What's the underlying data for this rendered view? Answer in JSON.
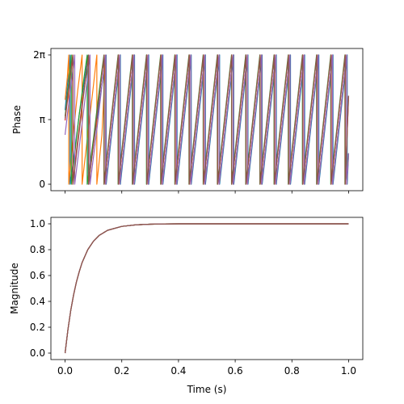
{
  "chart_data": [
    {
      "type": "line",
      "panel": "top",
      "title": "",
      "xlabel": "",
      "ylabel": "Phase",
      "xlim": [
        -0.05,
        1.05
      ],
      "ylim": [
        -0.314,
        6.597
      ],
      "x_tick_values": [
        0.0,
        0.2,
        0.4,
        0.6,
        0.8,
        1.0
      ],
      "x_tick_labels_shown": false,
      "y_ticks": [
        {
          "value": 0,
          "label": "0"
        },
        {
          "value": 3.14159,
          "label": "π"
        },
        {
          "value": 6.28319,
          "label": "2π"
        }
      ],
      "grid": false,
      "legend": "none",
      "wrap_period": 6.28319,
      "description_of_signal": "phase wrapped to [0, 2π) of a 20 Hz oscillation with transient start",
      "series": [
        {
          "color": "#1f77b4",
          "points": [
            [
              0.0,
              3.6
            ],
            [
              0.008,
              4.8
            ],
            [
              0.016,
              5.9
            ],
            [
              0.0175,
              6.28
            ],
            [
              0.0175,
              0.0
            ],
            [
              0.03,
              1.2
            ],
            [
              0.04,
              2.3
            ],
            [
              0.05,
              3.4
            ],
            [
              0.07,
              5.2
            ],
            [
              0.082,
              6.28
            ],
            [
              0.082,
              0.0
            ],
            [
              0.1,
              1.9
            ],
            [
              0.13,
              4.8
            ],
            [
              0.145,
              6.28
            ],
            [
              0.145,
              0.0
            ]
          ],
          "steady": {
            "start": 0.145,
            "end_phase": 1.5,
            "frequency": 20
          }
        },
        {
          "color": "#ff7f0e",
          "points": [
            [
              0.0,
              4.1
            ],
            [
              0.008,
              5.2
            ],
            [
              0.013,
              6.28
            ],
            [
              0.013,
              0.0
            ],
            [
              0.02,
              1.1
            ],
            [
              0.03,
              2.6
            ],
            [
              0.045,
              4.6
            ],
            [
              0.06,
              6.28
            ],
            [
              0.06,
              0.0
            ],
            [
              0.08,
              2.4
            ],
            [
              0.1,
              4.8
            ],
            [
              0.112,
              6.28
            ],
            [
              0.112,
              0.0
            ],
            [
              0.13,
              2.4
            ],
            [
              0.143,
              6.28
            ],
            [
              0.143,
              0.0
            ]
          ],
          "steady": {
            "start": 0.143,
            "end_phase": 1.5,
            "frequency": 20
          }
        },
        {
          "color": "#2ca02c",
          "points": [
            [
              0.0,
              3.3
            ],
            [
              0.01,
              4.6
            ],
            [
              0.02,
              5.9
            ],
            [
              0.022,
              6.28
            ],
            [
              0.022,
              0.0
            ],
            [
              0.035,
              1.6
            ],
            [
              0.05,
              3.4
            ],
            [
              0.065,
              5.0
            ],
            [
              0.078,
              6.28
            ],
            [
              0.078,
              0.0
            ],
            [
              0.1,
              2.2
            ],
            [
              0.12,
              4.5
            ],
            [
              0.137,
              6.28
            ],
            [
              0.137,
              0.0
            ]
          ],
          "steady": {
            "start": 0.137,
            "end_phase": 1.5,
            "frequency": 20
          }
        },
        {
          "color": "#d62728",
          "points": [
            [
              0.0,
              3.1
            ],
            [
              0.012,
              4.5
            ],
            [
              0.025,
              6.0
            ],
            [
              0.027,
              6.28
            ],
            [
              0.027,
              0.0
            ],
            [
              0.04,
              1.6
            ],
            [
              0.06,
              3.9
            ],
            [
              0.08,
              5.9
            ],
            [
              0.083,
              6.28
            ],
            [
              0.083,
              0.0
            ],
            [
              0.1,
              1.9
            ],
            [
              0.12,
              4.2
            ],
            [
              0.138,
              6.28
            ],
            [
              0.138,
              0.0
            ]
          ],
          "steady": {
            "start": 0.138,
            "end_phase": 4.3,
            "frequency": 20
          }
        },
        {
          "color": "#9467bd",
          "points": [
            [
              0.0,
              2.4
            ],
            [
              0.015,
              4.2
            ],
            [
              0.032,
              6.0
            ],
            [
              0.034,
              6.28
            ],
            [
              0.034,
              0.0
            ],
            [
              0.05,
              1.8
            ],
            [
              0.07,
              4.1
            ],
            [
              0.088,
              6.28
            ],
            [
              0.088,
              0.0
            ],
            [
              0.11,
              2.4
            ],
            [
              0.13,
              4.8
            ],
            [
              0.143,
              6.28
            ],
            [
              0.143,
              0.0
            ]
          ],
          "steady": {
            "start": 0.143,
            "end_phase": 1.5,
            "frequency": 20
          }
        },
        {
          "color": "#8c564b",
          "points": [
            [
              0.0,
              3.2
            ],
            [
              0.012,
              4.6
            ],
            [
              0.025,
              6.0
            ],
            [
              0.028,
              6.28
            ],
            [
              0.028,
              0.0
            ],
            [
              0.045,
              2.0
            ],
            [
              0.065,
              4.3
            ],
            [
              0.083,
              6.28
            ],
            [
              0.083,
              0.0
            ],
            [
              0.1,
              2.0
            ],
            [
              0.12,
              4.2
            ],
            [
              0.138,
              6.28
            ],
            [
              0.138,
              0.0
            ]
          ],
          "steady": {
            "start": 0.138,
            "end_phase": 4.3,
            "frequency": 20
          }
        }
      ]
    },
    {
      "type": "line",
      "panel": "bottom",
      "title": "",
      "xlabel": "Time (s)",
      "ylabel": "Magnitude",
      "xlim": [
        -0.05,
        1.05
      ],
      "ylim": [
        -0.05,
        1.05
      ],
      "x_ticks": [
        {
          "value": 0.0,
          "label": "0.0"
        },
        {
          "value": 0.2,
          "label": "0.2"
        },
        {
          "value": 0.4,
          "label": "0.4"
        },
        {
          "value": 0.6,
          "label": "0.6"
        },
        {
          "value": 0.8,
          "label": "0.8"
        },
        {
          "value": 1.0,
          "label": "1.0"
        }
      ],
      "y_ticks": [
        {
          "value": 0.0,
          "label": "0.0"
        },
        {
          "value": 0.2,
          "label": "0.2"
        },
        {
          "value": 0.4,
          "label": "0.4"
        },
        {
          "value": 0.6,
          "label": "0.6"
        },
        {
          "value": 0.8,
          "label": "0.8"
        },
        {
          "value": 1.0,
          "label": "1.0"
        }
      ],
      "grid": false,
      "legend": "none",
      "series": [
        {
          "color": "#1f77b4",
          "x": [
            0.0,
            0.01,
            0.02,
            0.03,
            0.04,
            0.05,
            0.06,
            0.08,
            0.1,
            0.12,
            0.15,
            0.2,
            0.25,
            0.3,
            0.35,
            0.4,
            0.5,
            0.6,
            0.8,
            1.0
          ],
          "y": [
            0.0,
            0.18,
            0.33,
            0.45,
            0.55,
            0.63,
            0.7,
            0.8,
            0.865,
            0.91,
            0.95,
            0.98,
            0.992,
            0.997,
            0.999,
            1.0,
            1.0,
            1.0,
            1.0,
            1.0
          ]
        },
        {
          "color": "#ff7f0e",
          "x": [
            0.0,
            0.01,
            0.02,
            0.03,
            0.04,
            0.05,
            0.06,
            0.08,
            0.1,
            0.12,
            0.15,
            0.2,
            0.25,
            0.3,
            0.35,
            0.4,
            0.5,
            0.6,
            0.8,
            1.0
          ],
          "y": [
            0.0,
            0.18,
            0.33,
            0.45,
            0.55,
            0.63,
            0.7,
            0.8,
            0.865,
            0.91,
            0.95,
            0.98,
            0.992,
            0.997,
            0.999,
            1.0,
            1.0,
            1.0,
            1.0,
            1.0
          ]
        },
        {
          "color": "#2ca02c",
          "x": [
            0.0,
            0.01,
            0.02,
            0.03,
            0.04,
            0.05,
            0.06,
            0.08,
            0.1,
            0.12,
            0.15,
            0.2,
            0.25,
            0.3,
            0.35,
            0.4,
            0.5,
            0.6,
            0.8,
            1.0
          ],
          "y": [
            0.0,
            0.18,
            0.33,
            0.45,
            0.55,
            0.63,
            0.7,
            0.8,
            0.865,
            0.91,
            0.95,
            0.98,
            0.992,
            0.997,
            0.999,
            1.0,
            1.0,
            1.0,
            1.0,
            1.0
          ]
        },
        {
          "color": "#d62728",
          "x": [
            0.0,
            0.01,
            0.02,
            0.03,
            0.04,
            0.05,
            0.06,
            0.08,
            0.1,
            0.12,
            0.15,
            0.2,
            0.25,
            0.3,
            0.35,
            0.4,
            0.5,
            0.6,
            0.8,
            1.0
          ],
          "y": [
            0.0,
            0.18,
            0.33,
            0.45,
            0.55,
            0.63,
            0.7,
            0.8,
            0.865,
            0.91,
            0.95,
            0.98,
            0.992,
            0.997,
            0.999,
            1.0,
            1.0,
            1.0,
            1.0,
            1.0
          ]
        },
        {
          "color": "#9467bd",
          "x": [
            0.0,
            0.01,
            0.02,
            0.03,
            0.04,
            0.05,
            0.06,
            0.08,
            0.1,
            0.12,
            0.15,
            0.2,
            0.25,
            0.3,
            0.35,
            0.4,
            0.5,
            0.6,
            0.8,
            1.0
          ],
          "y": [
            0.0,
            0.18,
            0.33,
            0.45,
            0.55,
            0.63,
            0.7,
            0.8,
            0.865,
            0.91,
            0.95,
            0.98,
            0.992,
            0.997,
            0.999,
            1.0,
            1.0,
            1.0,
            1.0,
            1.0
          ]
        },
        {
          "color": "#8c564b",
          "x": [
            0.0,
            0.01,
            0.02,
            0.03,
            0.04,
            0.05,
            0.06,
            0.08,
            0.1,
            0.12,
            0.15,
            0.2,
            0.25,
            0.3,
            0.35,
            0.4,
            0.5,
            0.6,
            0.8,
            1.0
          ],
          "y": [
            0.0,
            0.18,
            0.33,
            0.45,
            0.55,
            0.63,
            0.7,
            0.8,
            0.865,
            0.91,
            0.95,
            0.98,
            0.992,
            0.997,
            0.999,
            1.0,
            1.0,
            1.0,
            1.0,
            1.0
          ]
        }
      ]
    }
  ]
}
